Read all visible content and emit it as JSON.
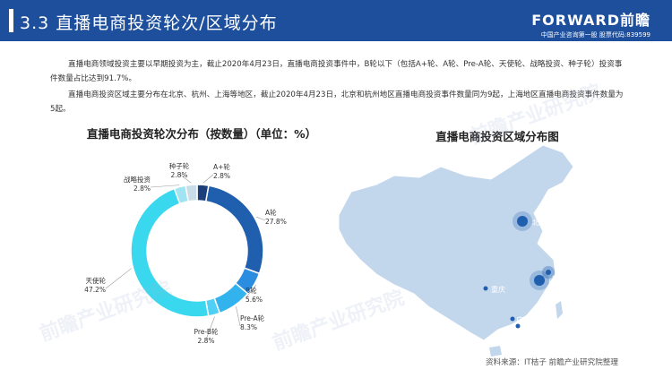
{
  "header": {
    "title": "3.3 直播电商投资轮次/区域分布",
    "brand_name": "FORWARD前瞻",
    "brand_sub": "中国产业咨询第一股  股票代码:839599"
  },
  "paragraphs": [
    "直播电商领域投资主要以早期投资为主，截止2020年4月23日，直播电商投资事件中，B轮以下（包括A+轮、A轮、Pre-A轮、天使轮、战略投资、种子轮）投资事件数量占比达到91.7%。",
    "直播电商投资区域主要分布在北京、杭州、上海等地区，截止2020年4月23日，北京和杭州地区直播电商投资事件数量同为9起，上海地区直播电商投资事件数量为5起。"
  ],
  "left_chart_title": "直播电商投资轮次分布（按数量）（单位：%）",
  "right_chart_title": "直播电商投资区域分布图",
  "source": "资料来源：IT桔子  前瞻产业研究院整理",
  "colors": {
    "header": "#1d4f9c",
    "A+轮": "#1a3f7a",
    "A轮": "#1f5fae",
    "B轮": "#2a8de0",
    "Pre-A轮": "#33b3ee",
    "Pre-B轮": "#4fd0f4",
    "天使轮": "#3ad8ee",
    "战略投资": "#9fe4f0",
    "种子轮": "#c9dde8"
  },
  "chart_data": {
    "type": "pie",
    "donut": true,
    "title": "直播电商投资轮次分布（按数量）（单位：%）",
    "categories": [
      "A+轮",
      "A轮",
      "B轮",
      "Pre-A轮",
      "Pre-B轮",
      "天使轮",
      "战略投资",
      "种子轮"
    ],
    "values": [
      2.8,
      27.8,
      5.6,
      8.3,
      2.8,
      47.2,
      2.8,
      2.8
    ],
    "value_labels": [
      "2.8%",
      "27.8%",
      "5.6%",
      "8.3%",
      "2.8%",
      "47.2%",
      "2.8%",
      "2.8%"
    ]
  },
  "map": {
    "cities": [
      {
        "name": "北京",
        "emphasis": "large"
      },
      {
        "name": "上海",
        "emphasis": "medium"
      },
      {
        "name": "杭州市",
        "emphasis": "large"
      },
      {
        "name": "重庆",
        "emphasis": "small"
      },
      {
        "name": "广州市",
        "emphasis": "small"
      },
      {
        "name": "深圳市",
        "emphasis": "small"
      }
    ]
  },
  "watermarks": [
    "前瞻产业研究院",
    "前瞻产业研究院",
    "前瞻产业研究院"
  ]
}
